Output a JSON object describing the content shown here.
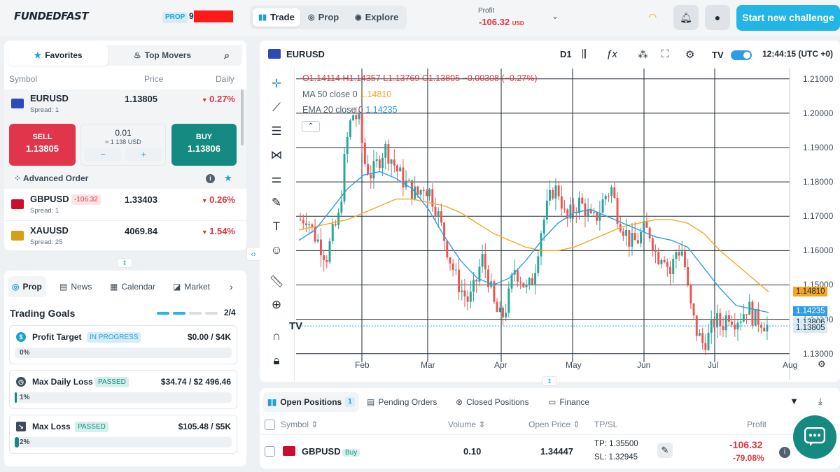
{
  "header": {
    "logo": "FUNDEDFAST",
    "prop_badge": "PROP",
    "account_prefix": "9",
    "nav": [
      {
        "label": "Trade",
        "icon": "bar-chart-icon"
      },
      {
        "label": "Prop",
        "icon": "target-icon"
      },
      {
        "label": "Explore",
        "icon": "compass-icon"
      }
    ],
    "profit_label": "Profit",
    "profit_value": "-106.32",
    "profit_currency": "USD",
    "cta": "Start new challenge"
  },
  "watchlist": {
    "tabs": [
      {
        "label": "Favorites",
        "icon": "star-icon"
      },
      {
        "label": "Top Movers",
        "icon": "fire-icon"
      }
    ],
    "columns": {
      "symbol": "Symbol",
      "price": "Price",
      "daily": "Daily"
    },
    "rows": [
      {
        "symbol": "EURUSD",
        "spread": "Spread: 1",
        "price": "1.13805",
        "daily": "0.27%"
      },
      {
        "symbol": "GBPUSD",
        "spread": "Spread: 1",
        "price": "1.33403",
        "daily": "0.26%",
        "pnl_badge": "-106.32"
      },
      {
        "symbol": "XAUUSD",
        "spread": "Spread: 25",
        "price": "4069.84",
        "daily": "1.54%"
      }
    ],
    "trade": {
      "sell_label": "SELL",
      "sell_price": "1.13805",
      "buy_label": "BUY",
      "buy_price": "1.13806",
      "lot": "0.01",
      "lot_usd": "≈ 1 138 USD",
      "minus": "−",
      "plus": "+"
    },
    "advanced_order": "Advanced Order"
  },
  "bottom_tabs": [
    {
      "label": "Prop",
      "icon": "target-icon"
    },
    {
      "label": "News",
      "icon": "news-icon"
    },
    {
      "label": "Calendar",
      "icon": "calendar-icon"
    },
    {
      "label": "Market",
      "icon": "market-icon"
    }
  ],
  "goals": {
    "title": "Trading Goals",
    "count": "2/4",
    "progress": {
      "completed": 2,
      "total": 4
    },
    "items": [
      {
        "name": "Profit Target",
        "badge": "IN PROGRESS",
        "value": "$0.00 / $4K",
        "pct": "0%",
        "fill": 0
      },
      {
        "name": "Max Daily Loss",
        "badge": "PASSED",
        "value": "$34.74 / $2 496.46",
        "pct": "1%",
        "fill": 0.01
      },
      {
        "name": "Max Loss",
        "badge": "PASSED",
        "value": "$105.48 / $5K",
        "pct": "2%",
        "fill": 0.02
      }
    ]
  },
  "chart": {
    "symbol": "EURUSD",
    "timeframe": "D1",
    "time": "12:44:15 (UTC +0)",
    "legend": {
      "o_label": "O",
      "o": "1.14114",
      "h_label": "H",
      "h": "1.14357",
      "l_label": "L",
      "l": "1.13769",
      "c_label": "C",
      "c": "1.13805",
      "chg": "−0.00308 (−0.27%)",
      "ma_label": "MA 50 close 0",
      "ma": "1.14810",
      "ema_label": "EMA 20 close 0",
      "ema": "1.14235"
    },
    "colors": {
      "up": "#26a69a",
      "down": "#ef5350",
      "ma": "#f5a623",
      "ema": "#2d9ee6"
    }
  },
  "chart_data": {
    "type": "candlestick",
    "x_ticks": [
      "Feb",
      "Mar",
      "Apr",
      "May",
      "Jun",
      "Jul",
      "Aug"
    ],
    "y_ticks": [
      "1.21000",
      "1.20000",
      "1.19000",
      "1.18000",
      "1.17000",
      "1.16000",
      "1.15000",
      "1.14000",
      "1.13000"
    ],
    "ylim": [
      1.1275,
      1.213
    ],
    "price_tags": [
      "1.14810",
      "1.14235",
      "1.13806",
      "1.13805"
    ],
    "price_path_approx": [
      1.169,
      1.17,
      1.165,
      1.162,
      1.158,
      1.165,
      1.17,
      1.19,
      1.2,
      1.198,
      1.185,
      1.182,
      1.186,
      1.19,
      1.187,
      1.183,
      1.18,
      1.178,
      1.176,
      1.179,
      1.177,
      1.172,
      1.165,
      1.158,
      1.152,
      1.148,
      1.145,
      1.15,
      1.158,
      1.152,
      1.143,
      1.14,
      1.145,
      1.155,
      1.152,
      1.148,
      1.153,
      1.165,
      1.172,
      1.178,
      1.177,
      1.168,
      1.172,
      1.174,
      1.172,
      1.168,
      1.171,
      1.176,
      1.178,
      1.17,
      1.166,
      1.162,
      1.163,
      1.166,
      1.165,
      1.158,
      1.16,
      1.153,
      1.16,
      1.16,
      1.145,
      1.137,
      1.133,
      1.135,
      1.14,
      1.138,
      1.142,
      1.14,
      1.141,
      1.144,
      1.14,
      1.14,
      1.138
    ],
    "ma_path_approx": [
      1.166,
      1.167,
      1.168,
      1.169,
      1.171,
      1.173,
      1.175,
      1.175,
      1.174,
      1.173,
      1.171,
      1.168,
      1.165,
      1.163,
      1.161,
      1.16,
      1.16,
      1.161,
      1.163,
      1.165,
      1.167,
      1.168,
      1.169,
      1.169,
      1.168,
      1.165,
      1.16,
      1.156,
      1.152,
      1.148
    ],
    "ema_path_approx": [
      1.163,
      1.166,
      1.172,
      1.178,
      1.182,
      1.183,
      1.181,
      1.178,
      1.172,
      1.164,
      1.157,
      1.152,
      1.15,
      1.152,
      1.157,
      1.163,
      1.168,
      1.171,
      1.172,
      1.17,
      1.168,
      1.166,
      1.164,
      1.163,
      1.161,
      1.155,
      1.149,
      1.144,
      1.143,
      1.142
    ]
  },
  "positions": {
    "tabs": [
      {
        "label": "Open Positions",
        "count": "1"
      },
      {
        "label": "Pending Orders"
      },
      {
        "label": "Closed Positions"
      },
      {
        "label": "Finance"
      }
    ],
    "columns": {
      "symbol": "Symbol ⇕",
      "volume": "Volume ⇕",
      "open": "Open Price ⇕",
      "tpsl": "TP/SL",
      "profit": "Profit"
    },
    "rows": [
      {
        "symbol": "GBPUSD",
        "side": "Buy",
        "volume": "0.10",
        "open": "1.34447",
        "tp": "TP: 1.35500",
        "sl": "SL: 1.32945",
        "profit": "-106.32",
        "profit_pct": "-79.08%"
      }
    ]
  }
}
